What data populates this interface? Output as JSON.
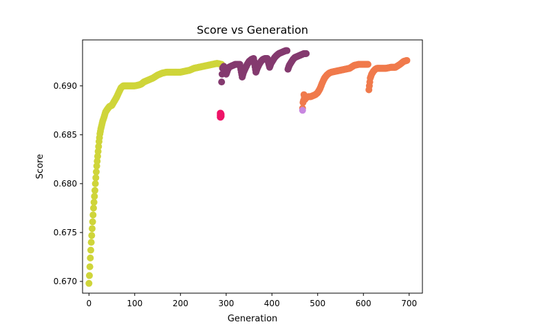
{
  "chart_data": {
    "type": "scatter",
    "title": "Score vs Generation",
    "xlabel": "Generation",
    "ylabel": "Score",
    "xlim": [
      -14,
      729
    ],
    "ylim": [
      0.6688,
      0.6947
    ],
    "xticks": [
      0,
      100,
      200,
      300,
      400,
      500,
      600,
      700
    ],
    "yticks": [
      0.67,
      0.675,
      0.68,
      0.685,
      0.69
    ],
    "ytick_labels": [
      "0.670",
      "0.675",
      "0.680",
      "0.685",
      "0.690"
    ],
    "grid": false,
    "legend": "none",
    "series": [
      {
        "color": "#cfd53a",
        "points": [
          [
            0,
            0.6698
          ],
          [
            1,
            0.6706
          ],
          [
            2,
            0.6715
          ],
          [
            3,
            0.6724
          ],
          [
            4,
            0.6732
          ],
          [
            5,
            0.674
          ],
          [
            6,
            0.6747
          ],
          [
            7,
            0.6754
          ],
          [
            8,
            0.6761
          ],
          [
            9,
            0.6768
          ],
          [
            10,
            0.6775
          ],
          [
            11,
            0.6781
          ],
          [
            12,
            0.6787
          ],
          [
            13,
            0.6793
          ],
          [
            14,
            0.68
          ],
          [
            15,
            0.6806
          ],
          [
            16,
            0.6812
          ],
          [
            17,
            0.6818
          ],
          [
            18,
            0.6823
          ],
          [
            19,
            0.6828
          ],
          [
            20,
            0.6833
          ],
          [
            21,
            0.6838
          ],
          [
            22,
            0.6843
          ],
          [
            23,
            0.6847
          ],
          [
            24,
            0.6851
          ],
          [
            26,
            0.6856
          ],
          [
            28,
            0.686
          ],
          [
            30,
            0.6864
          ],
          [
            33,
            0.6868
          ],
          [
            36,
            0.6873
          ],
          [
            40,
            0.6876
          ],
          [
            45,
            0.6879
          ],
          [
            50,
            0.688
          ],
          [
            55,
            0.6884
          ],
          [
            60,
            0.6888
          ],
          [
            65,
            0.6893
          ],
          [
            70,
            0.6898
          ],
          [
            75,
            0.69
          ],
          [
            80,
            0.69
          ],
          [
            90,
            0.69
          ],
          [
            100,
            0.69
          ],
          [
            110,
            0.6901
          ],
          [
            115,
            0.6902
          ],
          [
            120,
            0.6904
          ],
          [
            130,
            0.6906
          ],
          [
            140,
            0.6908
          ],
          [
            150,
            0.6911
          ],
          [
            160,
            0.6913
          ],
          [
            170,
            0.6914
          ],
          [
            180,
            0.6914
          ],
          [
            190,
            0.6914
          ],
          [
            200,
            0.6914
          ],
          [
            210,
            0.6915
          ],
          [
            220,
            0.6916
          ],
          [
            230,
            0.6918
          ],
          [
            240,
            0.6919
          ],
          [
            250,
            0.692
          ],
          [
            260,
            0.6921
          ],
          [
            270,
            0.6922
          ],
          [
            280,
            0.6923
          ],
          [
            290,
            0.6922
          ]
        ]
      },
      {
        "color": "#843a6f",
        "points": [
          [
            290,
            0.6904
          ],
          [
            291,
            0.6912
          ],
          [
            292,
            0.6918
          ],
          [
            295,
            0.692
          ],
          [
            300,
            0.6912
          ],
          [
            303,
            0.6916
          ],
          [
            306,
            0.6919
          ],
          [
            310,
            0.692
          ],
          [
            315,
            0.6921
          ],
          [
            320,
            0.6922
          ],
          [
            325,
            0.6922
          ],
          [
            330,
            0.6922
          ],
          [
            335,
            0.6909
          ],
          [
            338,
            0.6914
          ],
          [
            342,
            0.6918
          ],
          [
            346,
            0.6922
          ],
          [
            350,
            0.6925
          ],
          [
            355,
            0.6927
          ],
          [
            360,
            0.6928
          ],
          [
            365,
            0.6914
          ],
          [
            368,
            0.6918
          ],
          [
            372,
            0.6922
          ],
          [
            376,
            0.6925
          ],
          [
            380,
            0.6927
          ],
          [
            385,
            0.6928
          ],
          [
            390,
            0.6928
          ],
          [
            395,
            0.6919
          ],
          [
            398,
            0.6923
          ],
          [
            402,
            0.6926
          ],
          [
            406,
            0.6929
          ],
          [
            410,
            0.6931
          ],
          [
            415,
            0.6933
          ],
          [
            420,
            0.6934
          ],
          [
            425,
            0.6935
          ],
          [
            430,
            0.6936
          ],
          [
            433,
            0.6936
          ],
          [
            435,
            0.6917
          ],
          [
            438,
            0.6921
          ],
          [
            442,
            0.6924
          ],
          [
            446,
            0.6927
          ],
          [
            450,
            0.6929
          ],
          [
            455,
            0.693
          ],
          [
            460,
            0.6931
          ],
          [
            465,
            0.6932
          ],
          [
            470,
            0.6933
          ],
          [
            475,
            0.6933
          ]
        ]
      },
      {
        "color": "#f07a4c",
        "points": [
          [
            467,
            0.6877
          ],
          [
            468,
            0.6883
          ],
          [
            469,
            0.6885
          ],
          [
            470,
            0.6891
          ],
          [
            472,
            0.6886
          ],
          [
            475,
            0.6888
          ],
          [
            480,
            0.6889
          ],
          [
            485,
            0.6889
          ],
          [
            490,
            0.689
          ],
          [
            495,
            0.6891
          ],
          [
            500,
            0.6893
          ],
          [
            505,
            0.6897
          ],
          [
            510,
            0.6903
          ],
          [
            515,
            0.6908
          ],
          [
            520,
            0.6911
          ],
          [
            525,
            0.6913
          ],
          [
            530,
            0.6914
          ],
          [
            540,
            0.6915
          ],
          [
            550,
            0.6916
          ],
          [
            560,
            0.6917
          ],
          [
            570,
            0.6918
          ],
          [
            580,
            0.6921
          ],
          [
            590,
            0.6922
          ],
          [
            600,
            0.6922
          ],
          [
            610,
            0.6922
          ],
          [
            612,
            0.6896
          ],
          [
            613,
            0.69
          ],
          [
            614,
            0.6904
          ],
          [
            615,
            0.6908
          ],
          [
            618,
            0.6912
          ],
          [
            622,
            0.6915
          ],
          [
            626,
            0.6917
          ],
          [
            630,
            0.6918
          ],
          [
            640,
            0.6918
          ],
          [
            650,
            0.6918
          ],
          [
            660,
            0.6919
          ],
          [
            670,
            0.6919
          ],
          [
            680,
            0.6922
          ],
          [
            688,
            0.6925
          ],
          [
            695,
            0.6926
          ]
        ]
      },
      {
        "color": "#ee1467",
        "points": [
          [
            287,
            0.6868
          ],
          [
            287,
            0.687
          ],
          [
            287,
            0.6872
          ],
          [
            288,
            0.6868
          ],
          [
            288,
            0.687
          ],
          [
            288,
            0.6872
          ],
          [
            289,
            0.6869
          ],
          [
            289,
            0.6871
          ]
        ]
      },
      {
        "color": "#c887e0",
        "points": [
          [
            467,
            0.6875
          ]
        ]
      }
    ]
  }
}
